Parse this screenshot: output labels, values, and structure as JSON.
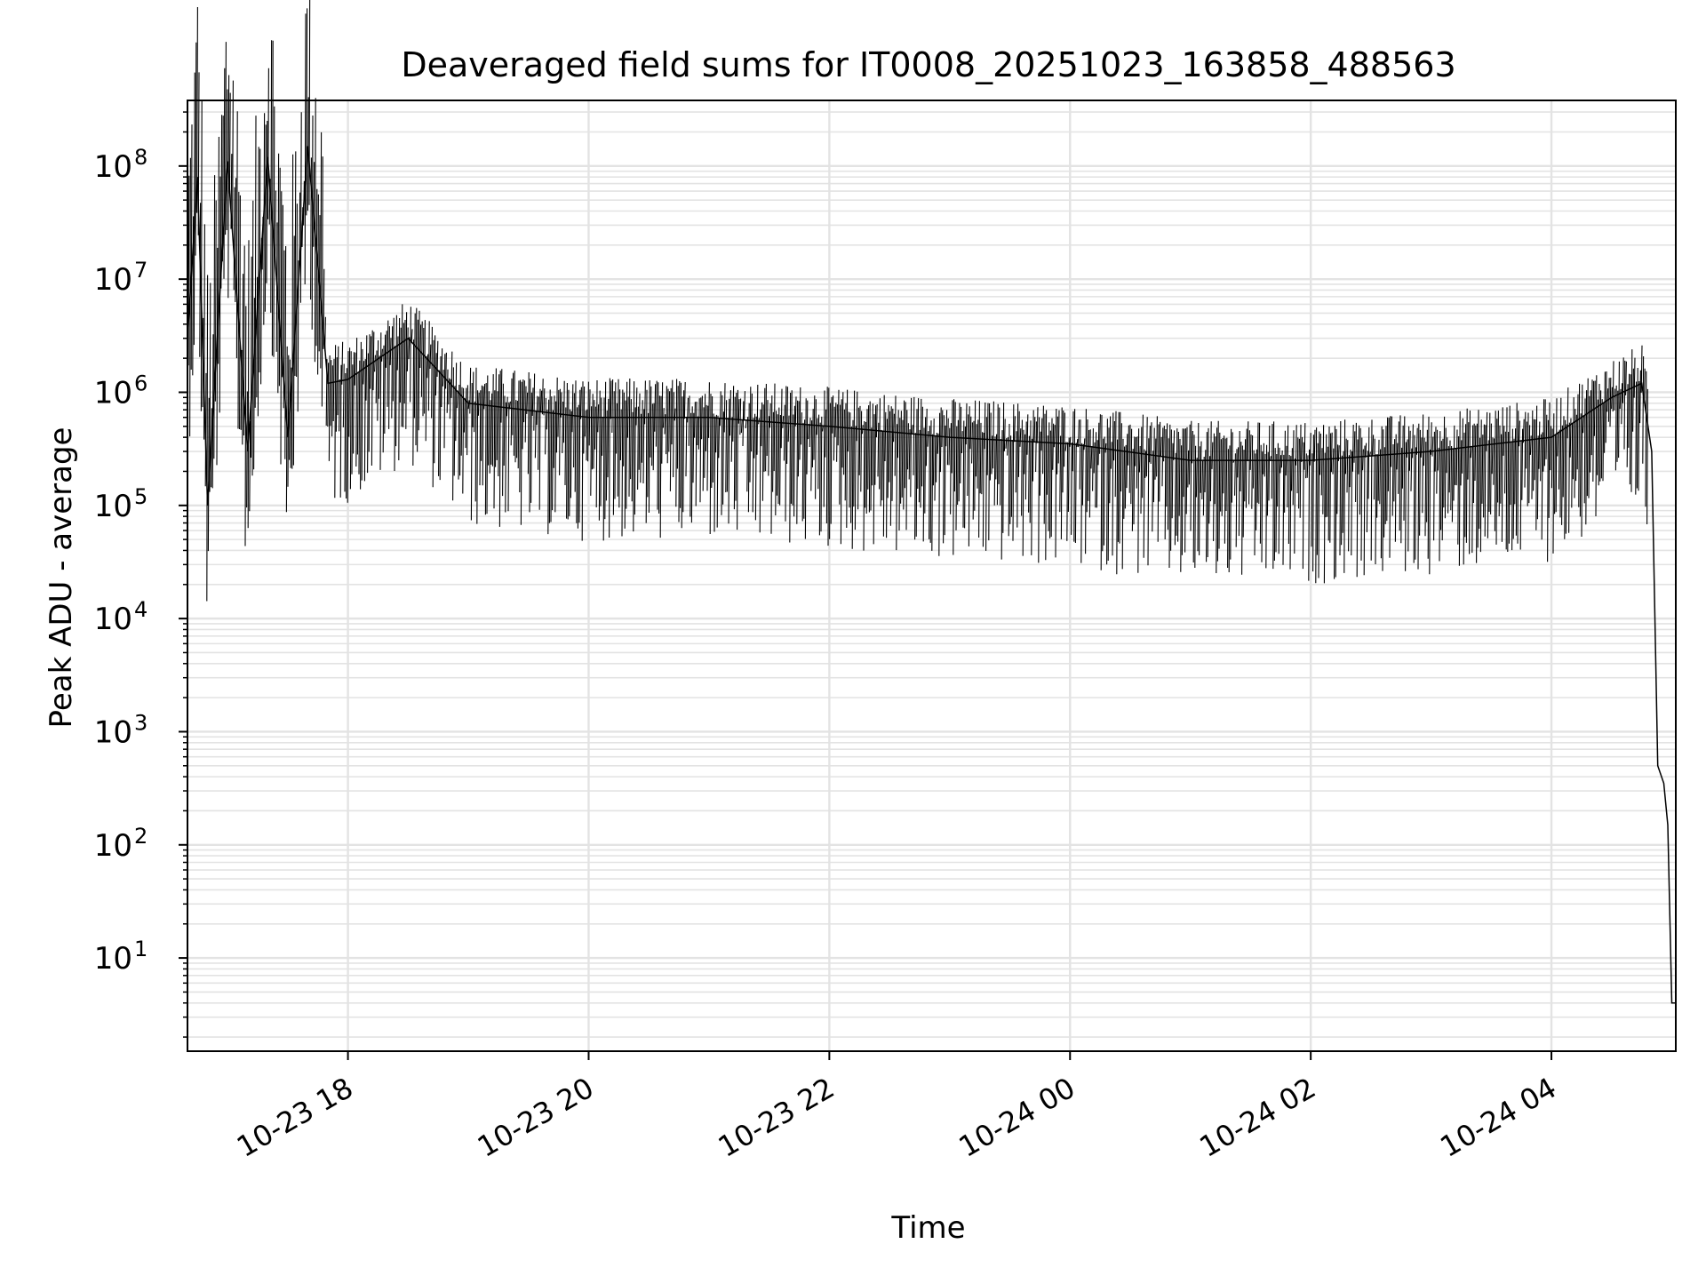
{
  "chart_data": {
    "type": "line",
    "title": "Deaveraged field sums for IT0008_20251023_163858_488563",
    "xlabel": "Time",
    "ylabel": "Peak ADU - average",
    "yscale": "log",
    "ylim": [
      1.5,
      380000000
    ],
    "xlim": [
      "2025-10-23 16:40",
      "2025-10-24 05:02"
    ],
    "x_ticks": [
      {
        "t": "2025-10-23 18:00",
        "label": "10-23 18"
      },
      {
        "t": "2025-10-23 20:00",
        "label": "10-23 20"
      },
      {
        "t": "2025-10-23 22:00",
        "label": "10-23 22"
      },
      {
        "t": "2025-10-24 00:00",
        "label": "10-24 00"
      },
      {
        "t": "2025-10-24 02:00",
        "label": "10-24 02"
      },
      {
        "t": "2025-10-24 04:00",
        "label": "10-24 04"
      }
    ],
    "y_ticks": [
      {
        "value": 10,
        "base": "10",
        "exp": "1"
      },
      {
        "value": 100,
        "base": "10",
        "exp": "2"
      },
      {
        "value": 1000,
        "base": "10",
        "exp": "3"
      },
      {
        "value": 10000,
        "base": "10",
        "exp": "4"
      },
      {
        "value": 100000,
        "base": "10",
        "exp": "5"
      },
      {
        "value": 1000000,
        "base": "10",
        "exp": "6"
      },
      {
        "value": 10000000,
        "base": "10",
        "exp": "7"
      },
      {
        "value": 100000000,
        "base": "10",
        "exp": "8"
      }
    ],
    "grid": true,
    "line_color": "#000000",
    "series": [
      {
        "points": [
          [
            "2025-10-23 16:40",
            3000000
          ],
          [
            "2025-10-23 16:45",
            80000000
          ],
          [
            "2025-10-23 16:50",
            100000
          ],
          [
            "2025-10-23 17:00",
            110000000
          ],
          [
            "2025-10-23 17:10",
            300000
          ],
          [
            "2025-10-23 17:20",
            120000000
          ],
          [
            "2025-10-23 17:30",
            400000
          ],
          [
            "2025-10-23 17:40",
            150000000
          ],
          [
            "2025-10-23 17:50",
            1200000
          ],
          [
            "2025-10-23 18:00",
            1300000
          ],
          [
            "2025-10-23 18:30",
            3000000
          ],
          [
            "2025-10-23 19:00",
            800000
          ],
          [
            "2025-10-23 20:00",
            600000
          ],
          [
            "2025-10-23 21:00",
            600000
          ],
          [
            "2025-10-23 22:00",
            500000
          ],
          [
            "2025-10-23 23:00",
            400000
          ],
          [
            "2025-10-24 00:00",
            350000
          ],
          [
            "2025-10-24 01:00",
            250000
          ],
          [
            "2025-10-24 02:00",
            250000
          ],
          [
            "2025-10-24 03:00",
            300000
          ],
          [
            "2025-10-24 04:00",
            400000
          ],
          [
            "2025-10-24 04:30",
            900000
          ],
          [
            "2025-10-24 04:45",
            1200000
          ],
          [
            "2025-10-24 04:50",
            300000
          ],
          [
            "2025-10-24 04:53",
            500
          ],
          [
            "2025-10-24 04:56",
            350
          ],
          [
            "2025-10-24 04:58",
            150
          ],
          [
            "2025-10-24 05:00",
            4
          ],
          [
            "2025-10-24 05:02",
            4
          ]
        ]
      }
    ]
  }
}
